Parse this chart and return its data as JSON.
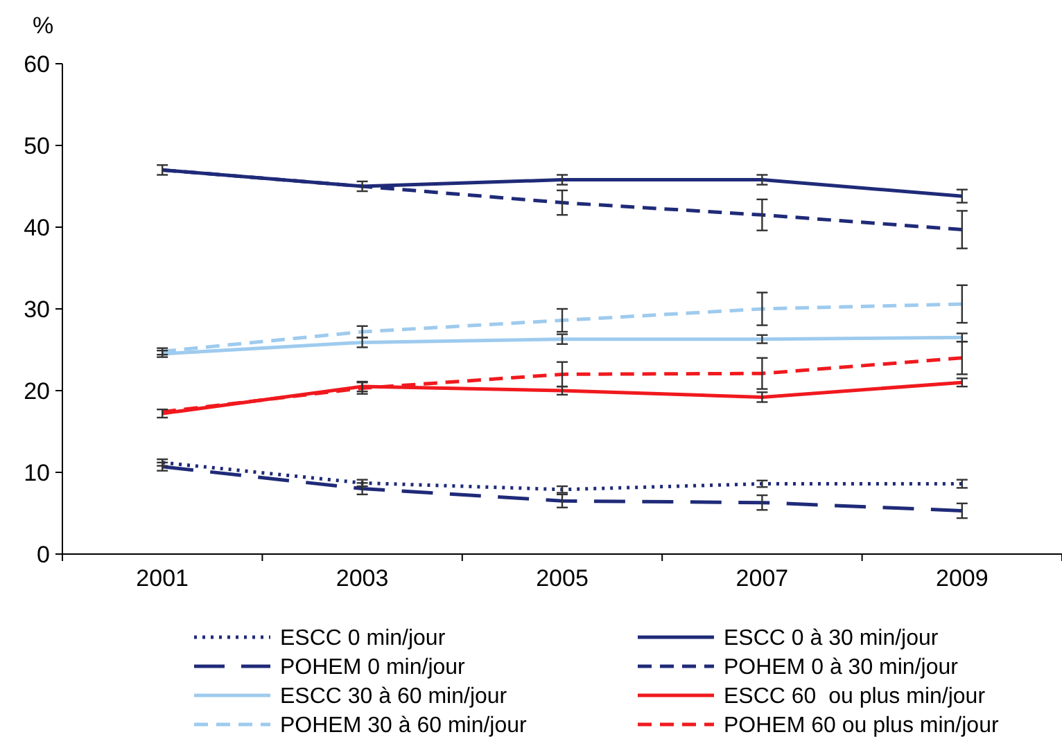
{
  "chart_data": {
    "type": "line",
    "ylabel": "%",
    "categories": [
      "2001",
      "2003",
      "2005",
      "2007",
      "2009"
    ],
    "ylim": [
      0,
      60
    ],
    "yticks": [
      0,
      10,
      20,
      30,
      40,
      50,
      60
    ],
    "grid": false,
    "legend": "bottom",
    "marker": "none",
    "series": [
      {
        "name": "ESCC 0 min/jour",
        "color": "#1f2a78",
        "line_style": "dotted",
        "values": [
          11.2,
          8.7,
          7.9,
          8.6,
          8.6
        ],
        "errors": [
          0.4,
          0.4,
          0.4,
          0.4,
          0.5
        ]
      },
      {
        "name": "ESCC 0 à 30 min/jour",
        "color": "#1f2a78",
        "line_style": "solid",
        "values": [
          47,
          45,
          45.8,
          45.8,
          43.8
        ],
        "errors": [
          0.6,
          0.6,
          0.6,
          0.6,
          0.8
        ]
      },
      {
        "name": "POHEM 0 min/jour",
        "color": "#1f2a78",
        "line_style": "longdash",
        "values": [
          10.7,
          8,
          6.5,
          6.3,
          5.3
        ],
        "errors": [
          0.5,
          0.7,
          0.8,
          0.9,
          0.9
        ]
      },
      {
        "name": "POHEM 0 à 30 min/jour",
        "color": "#1f2a78",
        "line_style": "dashed",
        "values": [
          47,
          45,
          43,
          41.5,
          39.7
        ],
        "errors": [
          null,
          null,
          1.5,
          1.9,
          2.3
        ]
      },
      {
        "name": "ESCC 30 à 60 min/jour",
        "color": "#9ecbee",
        "line_style": "solid",
        "values": [
          24.5,
          25.9,
          26.3,
          26.3,
          26.5
        ],
        "errors": [
          0.4,
          0.6,
          0.6,
          0.5,
          0.5
        ]
      },
      {
        "name": "ESCC 60  ou plus min/jour",
        "color": "#f0191e",
        "line_style": "solid",
        "values": [
          17.2,
          20.5,
          20,
          19.2,
          21
        ],
        "errors": [
          0.5,
          0.6,
          0.5,
          0.6,
          0.5
        ]
      },
      {
        "name": "POHEM 30 à 60 min/jour",
        "color": "#9ecbee",
        "line_style": "dashed",
        "values": [
          24.8,
          27.2,
          28.6,
          30,
          30.6
        ],
        "errors": [
          0.4,
          0.7,
          1.4,
          2,
          2.3
        ]
      },
      {
        "name": "POHEM 60 ou plus min/jour",
        "color": "#f0191e",
        "line_style": "dashed",
        "values": [
          17.4,
          20.3,
          22,
          22.1,
          24
        ],
        "errors": [
          null,
          0.7,
          1.5,
          1.9,
          2
        ]
      }
    ]
  }
}
